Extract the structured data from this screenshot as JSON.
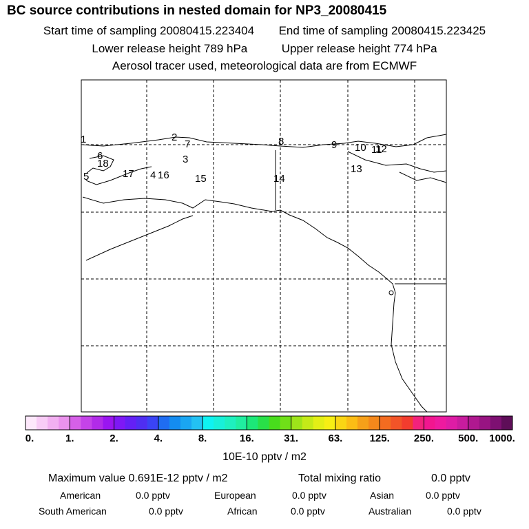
{
  "header": {
    "title": "BC  source contributions in nested domain for NP3_20080415",
    "start_label": "Start time of sampling 20080415.223404",
    "end_label": "End time of sampling 20080415.223425",
    "lower_label": "Lower release height  789 hPa",
    "upper_label": "Upper release height  774 hPa",
    "tracer_line": "Aerosol tracer used, meteorological data are from ECMWF"
  },
  "map": {
    "point_labels": [
      "1",
      "2",
      "3",
      "4",
      "5",
      "6",
      "7",
      "8",
      "9",
      "10",
      "11",
      "12",
      "13",
      "14",
      "15",
      "16",
      "17",
      "18"
    ]
  },
  "colorbar": {
    "ticks": [
      "0.",
      "1.",
      "2.",
      "4.",
      "8.",
      "16.",
      "31.",
      "63.",
      "125.",
      "250.",
      "500.",
      "1000."
    ],
    "units": "10E-10 pptv / m2",
    "colors": [
      "#fde8fb",
      "#f8ccf6",
      "#f2b0f1",
      "#eb93ed",
      "#d660e8",
      "#c443e8",
      "#b12be8",
      "#9a15f0",
      "#7e18f5",
      "#6420f5",
      "#4f2ef2",
      "#3a44f5",
      "#1f6df2",
      "#148cf0",
      "#1aa6f2",
      "#23c1f2",
      "#0ff2f2",
      "#18f0d9",
      "#1ef0bf",
      "#20eea0",
      "#1ce878",
      "#29e048",
      "#48dc1c",
      "#70e018",
      "#9ee41a",
      "#c4ea18",
      "#e3ef16",
      "#f7ef14",
      "#fad614",
      "#fbbd15",
      "#f6a019",
      "#f4881b",
      "#f46c20",
      "#f25428",
      "#f23c2e",
      "#f2227c",
      "#f2168f",
      "#ee1a9f",
      "#de1ca5",
      "#c81c9e",
      "#b01890",
      "#981482",
      "#7e1072",
      "#5e0e58"
    ]
  },
  "stats": {
    "max_label": "Maximum value  0.691E-12 pptv / m2",
    "total_label": "Total mixing ratio",
    "total_value": "0.0 pptv",
    "american_label": "American",
    "american_value": "0.0 pptv",
    "european_label": "European",
    "european_value": "0.0 pptv",
    "asian_label": "Asian",
    "asian_value": "0.0 pptv",
    "south_american_label": "South American",
    "south_american_value": "0.0 pptv",
    "african_label": "African",
    "african_value": "0.0 pptv",
    "australian_label": "Australian",
    "australian_value": "0.0 pptv"
  }
}
